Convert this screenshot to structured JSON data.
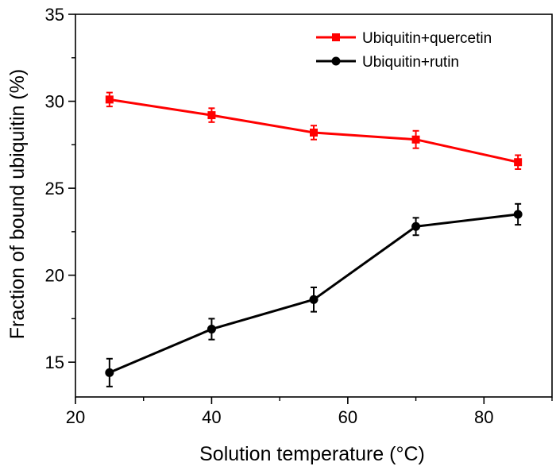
{
  "chart_data": {
    "type": "line",
    "xlabel": "Solution temperature (°C)",
    "ylabel": "Fraction of bound ubiquitin (%)",
    "xlim": [
      20,
      90
    ],
    "ylim": [
      13,
      35
    ],
    "x_ticks": [
      20,
      40,
      60,
      80
    ],
    "y_ticks": [
      15,
      20,
      25,
      30,
      35
    ],
    "grid": false,
    "legend_position": "top-right",
    "series": [
      {
        "name": "Ubiquitin+quercetin",
        "color": "#ff0000",
        "marker": "square",
        "x": [
          25,
          40,
          55,
          70,
          85
        ],
        "y": [
          30.1,
          29.2,
          28.2,
          27.8,
          26.5
        ],
        "error": [
          0.4,
          0.4,
          0.4,
          0.5,
          0.4
        ]
      },
      {
        "name": "Ubiquitin+rutin",
        "color": "#000000",
        "marker": "circle",
        "x": [
          25,
          40,
          55,
          70,
          85
        ],
        "y": [
          14.4,
          16.9,
          18.6,
          22.8,
          23.5
        ],
        "error": [
          0.8,
          0.6,
          0.7,
          0.5,
          0.6
        ]
      }
    ]
  }
}
